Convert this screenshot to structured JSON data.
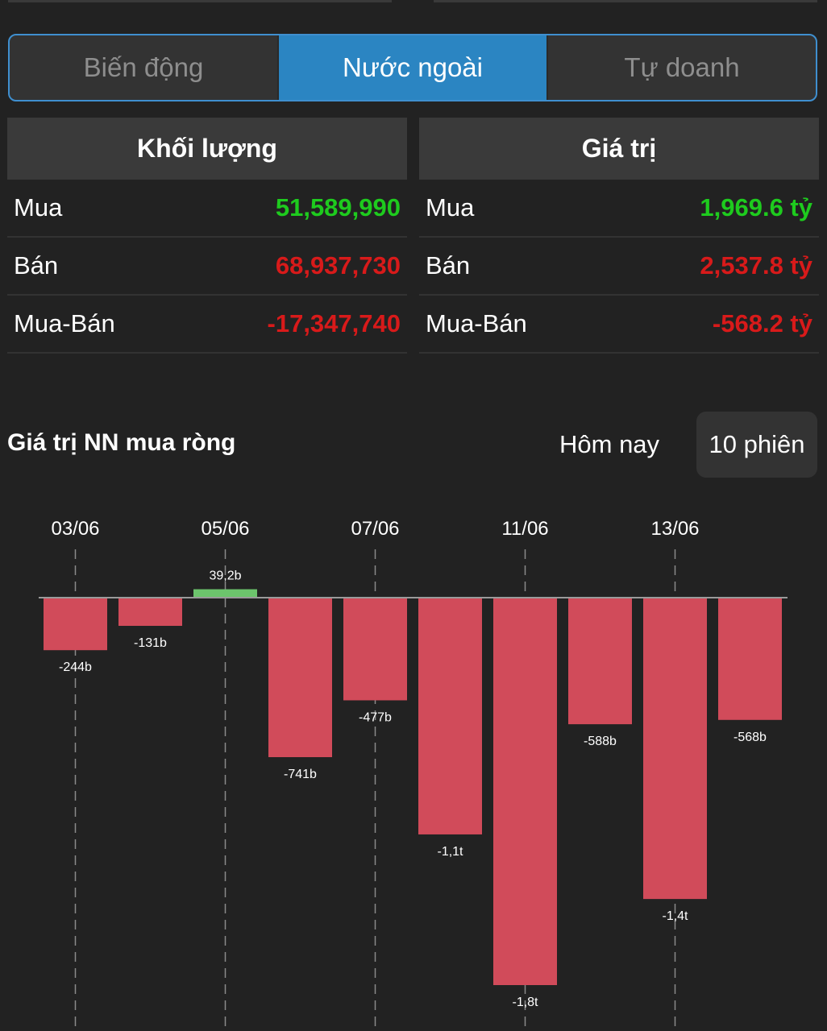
{
  "tabs": [
    {
      "label": "Biến động",
      "active": false
    },
    {
      "label": "Nước ngoài",
      "active": true
    },
    {
      "label": "Tự doanh",
      "active": false
    }
  ],
  "volume": {
    "header": "Khối lượng",
    "rows": [
      {
        "label": "Mua",
        "value": "51,589,990",
        "color": "green"
      },
      {
        "label": "Bán",
        "value": "68,937,730",
        "color": "red"
      },
      {
        "label": "Mua-Bán",
        "value": "-17,347,740",
        "color": "red"
      }
    ]
  },
  "value": {
    "header": "Giá trị",
    "rows": [
      {
        "label": "Mua",
        "value": "1,969.6 tỷ",
        "color": "green"
      },
      {
        "label": "Bán",
        "value": "2,537.8 tỷ",
        "color": "red"
      },
      {
        "label": "Mua-Bán",
        "value": "-568.2 tỷ",
        "color": "red"
      }
    ]
  },
  "chart_section": {
    "title": "Giá trị NN mua ròng",
    "period_today": "Hôm nay",
    "period_10": "10 phiên"
  },
  "chart_data": {
    "type": "bar",
    "x_tick_labels": [
      "03/06",
      "05/06",
      "07/06",
      "11/06",
      "13/06"
    ],
    "values": [
      -244,
      -131,
      39.2,
      -741,
      -477,
      -1100,
      -1800,
      -588,
      -1400,
      -568
    ],
    "data_labels": [
      "-244b",
      "-131b",
      "39,2b",
      "-741b",
      "-477b",
      "-1,1t",
      "-1,8t",
      "-588b",
      "-1,4t",
      "-568b"
    ],
    "colors": {
      "positive": "#6cc46c",
      "negative": "#d14b5a"
    }
  }
}
